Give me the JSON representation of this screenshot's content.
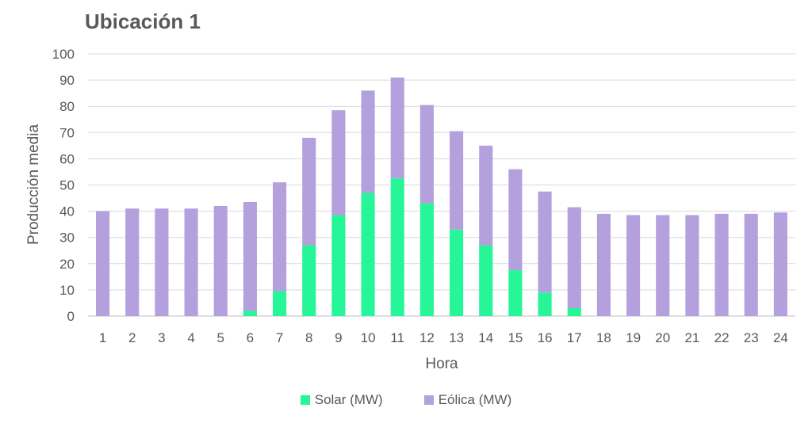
{
  "chart_data": {
    "type": "bar",
    "stacked": true,
    "title": "Ubicación 1",
    "xlabel": "Hora",
    "ylabel": "Producción media",
    "ylim": [
      0,
      100
    ],
    "yticks": [
      "0",
      "10",
      "20",
      "30",
      "40",
      "50",
      "60",
      "70",
      "80",
      "90",
      "100"
    ],
    "categories": [
      "1",
      "2",
      "3",
      "4",
      "5",
      "6",
      "7",
      "8",
      "9",
      "10",
      "11",
      "12",
      "13",
      "14",
      "15",
      "16",
      "17",
      "18",
      "19",
      "20",
      "21",
      "22",
      "23",
      "24"
    ],
    "series": [
      {
        "name": "Solar (MW)",
        "color": "#26F598",
        "values": [
          0,
          0,
          0,
          0,
          0,
          2,
          9.5,
          27,
          38.5,
          47,
          52.5,
          43,
          33,
          27,
          17.5,
          9,
          3,
          0,
          0,
          0,
          0,
          0,
          0,
          0
        ]
      },
      {
        "name": "Eólica (MW)",
        "color": "#B4A0DC",
        "values": [
          40,
          41,
          41,
          41,
          42,
          41.5,
          41.5,
          41,
          40,
          39,
          38.5,
          37.5,
          37.5,
          38,
          38.5,
          38.5,
          38.5,
          39,
          38.5,
          38.5,
          38.5,
          39,
          39,
          39.5
        ]
      }
    ],
    "grid": true,
    "legend": "bottom"
  }
}
